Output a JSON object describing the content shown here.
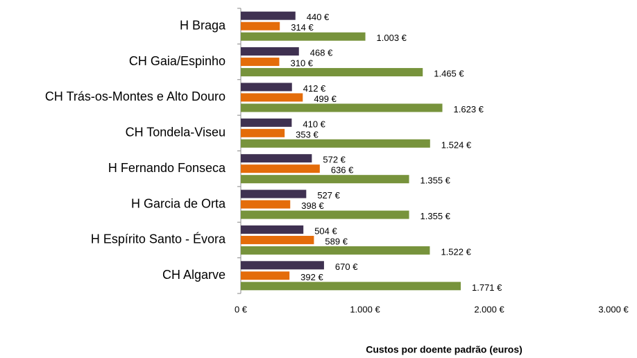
{
  "chart_data": {
    "type": "bar",
    "orientation": "horizontal",
    "xlabel": "Custos por doente padrão (euros)",
    "categories": [
      "H Braga",
      "CH Gaia/Espinho",
      "CH Trás-os-Montes e Alto Douro",
      "CH Tondela-Viseu",
      "H Fernando Fonseca",
      "H Garcia de Orta",
      "H Espírito Santo - Évora",
      "CH Algarve"
    ],
    "series": [
      {
        "color": "#3f3151",
        "values": [
          440,
          468,
          412,
          410,
          572,
          527,
          504,
          670
        ],
        "value_labels": [
          "440 €",
          "468 €",
          "412 €",
          "410 €",
          "572 €",
          "527 €",
          "504 €",
          "670 €"
        ]
      },
      {
        "color": "#e46c0a",
        "values": [
          314,
          310,
          499,
          353,
          636,
          398,
          589,
          392
        ],
        "value_labels": [
          "314 €",
          "310 €",
          "499 €",
          "353 €",
          "636 €",
          "398 €",
          "589 €",
          "392 €"
        ]
      },
      {
        "color": "#77933c",
        "values": [
          1003,
          1465,
          1623,
          1524,
          1355,
          1355,
          1522,
          1771
        ],
        "value_labels": [
          "1.003 €",
          "1.465 €",
          "1.623 €",
          "1.524 €",
          "1.355 €",
          "1.355 €",
          "1.522 €",
          "1.771 €"
        ]
      }
    ],
    "xlim": [
      0,
      3000
    ],
    "xticks": [
      {
        "value": 0,
        "label": "0 €"
      },
      {
        "value": 1000,
        "label": "1.000 €"
      },
      {
        "value": 2000,
        "label": "2.000 €"
      },
      {
        "value": 3000,
        "label": "3.000 €"
      }
    ]
  }
}
